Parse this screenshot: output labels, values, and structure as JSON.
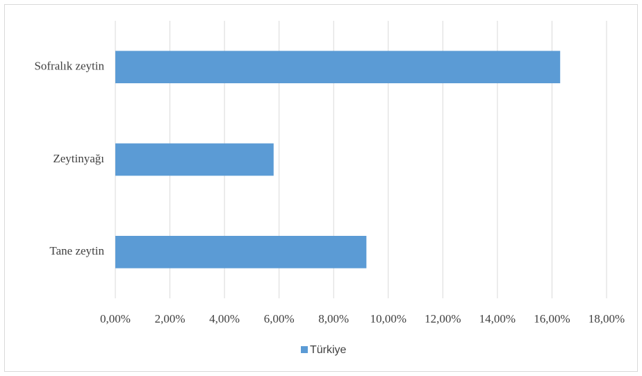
{
  "chart_data": {
    "type": "bar",
    "orientation": "horizontal",
    "categories": [
      "Sofralık zeytin",
      "Zeytinyağı",
      "Tane zeytin"
    ],
    "series": [
      {
        "name": "Türkiye",
        "color": "#5b9bd5",
        "values": [
          16.3,
          5.8,
          9.2
        ]
      }
    ],
    "xlim": [
      0,
      18
    ],
    "xticks": [
      {
        "value": 0,
        "label": "0,00%"
      },
      {
        "value": 2,
        "label": "2,00%"
      },
      {
        "value": 4,
        "label": "4,00%"
      },
      {
        "value": 6,
        "label": "6,00%"
      },
      {
        "value": 8,
        "label": "8,00%"
      },
      {
        "value": 10,
        "label": "10,00%"
      },
      {
        "value": 12,
        "label": "12,00%"
      },
      {
        "value": 14,
        "label": "14,00%"
      },
      {
        "value": 16,
        "label": "16,00%"
      },
      {
        "value": 18,
        "label": "18,00%"
      }
    ],
    "grid": true,
    "legend": "bottom"
  }
}
